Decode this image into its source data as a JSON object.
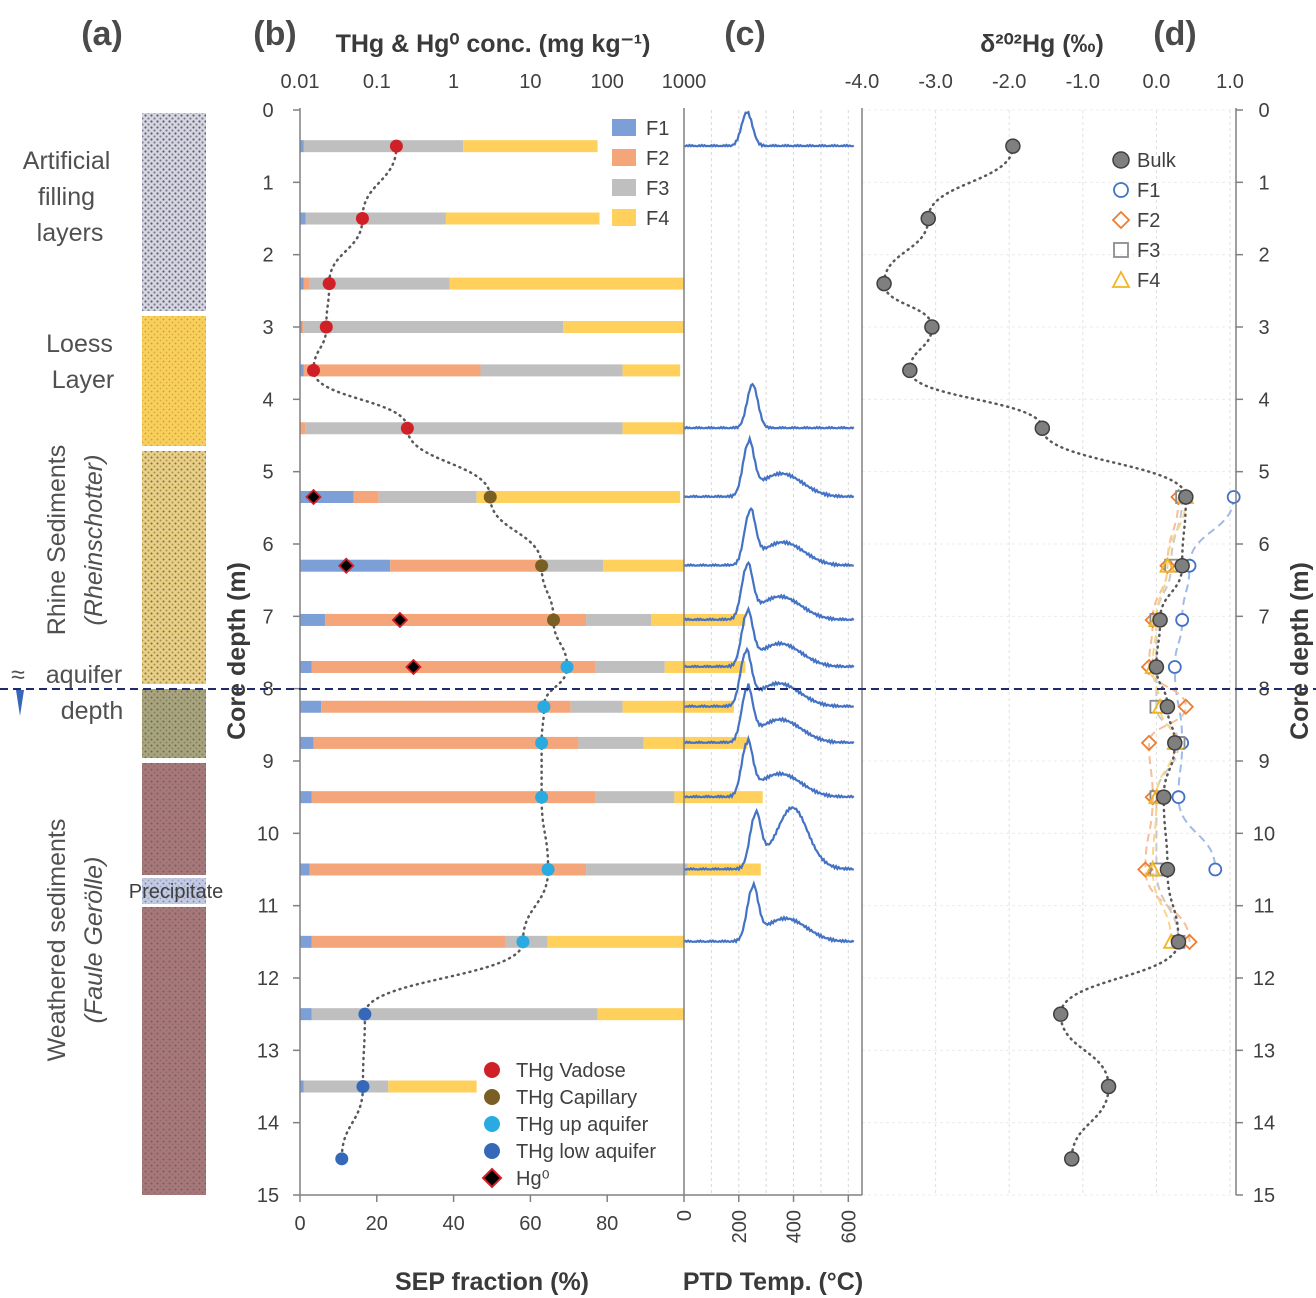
{
  "panel_labels": [
    "(a)",
    "(b)",
    "(c)",
    "(d)"
  ],
  "stratigraphy": {
    "artificial": "Artificial filling layers",
    "loess": "Loess Layer",
    "rhine": "Rhine Sediments",
    "rhine_italic": "(Rheinschotter)",
    "aquifer_approx": "≈",
    "aquifer": "aquifer",
    "aquifer_depth": "depth",
    "weathered": "Weathered sediments",
    "weathered_italic": "(Faule Gerölle)",
    "precipitate": "Precipitate"
  },
  "colors": {
    "F1": "#7b9fd6",
    "F2": "#f4a57a",
    "F3": "#bfbfbf",
    "F4": "#ffd15c",
    "vadose": "#d02027",
    "capillary": "#7a5f24",
    "up_aquifer": "#29abe2",
    "low_aquifer": "#3568b8",
    "hg0": "#000000",
    "hg0_edge": "#d02027",
    "ptd_line": "#4472c4",
    "bulk": "#7f7f7f",
    "aquifer_line": "#1f2a6e",
    "dotted": "#595959"
  },
  "chart_data": [
    {
      "type": "bar",
      "panel": "(b)",
      "orientation": "horizontal-stacked",
      "title_top": "THg & Hg⁰ conc. (mg kg⁻¹)",
      "xlabel": "SEP fraction (%)",
      "ylabel": "Core depth (m)",
      "xlim": [
        0,
        100
      ],
      "ylim": [
        0,
        15
      ],
      "x_ticks": [
        "0",
        "20",
        "40",
        "60",
        "80"
      ],
      "top_log_ticks": [
        "0.01",
        "0.1",
        "1",
        "10",
        "100",
        "1000"
      ],
      "top_log_range": [
        0.01,
        1000
      ],
      "y_ticks": [
        "0",
        "1",
        "2",
        "3",
        "4",
        "5",
        "6",
        "7",
        "8",
        "9",
        "10",
        "11",
        "12",
        "13",
        "14",
        "15"
      ],
      "series_names": [
        "F1",
        "F2",
        "F3",
        "F4"
      ],
      "depths": [
        0.5,
        1.5,
        2.4,
        3.0,
        3.6,
        4.4,
        5.35,
        6.3,
        7.05,
        7.7,
        8.25,
        8.75,
        9.5,
        10.5,
        11.5,
        12.5,
        13.5
      ],
      "F1_values": [
        1.0,
        1.5,
        1.0,
        0.5,
        1.0,
        0.0,
        14.0,
        23.5,
        6.5,
        3.0,
        5.5,
        3.5,
        3.0,
        2.5,
        3.0,
        3.0,
        1.0
      ],
      "F2_values": [
        0.0,
        0.0,
        1.5,
        0.5,
        47.0,
        1.5,
        6.5,
        0.0,
        0.0,
        0.0,
        0.0,
        0.0,
        0.0,
        0.0,
        0.0,
        0.0,
        0.0
      ],
      "F2_fill": [
        0,
        0,
        1.5,
        0.5,
        46,
        1.5,
        6.5,
        40.0,
        68.0,
        74.0,
        65.0,
        69.0,
        74.0,
        72.0,
        50.5,
        0,
        0
      ],
      "F3_values": [
        41.5,
        36.5,
        36.5,
        67.5,
        37.0,
        82.5,
        25.5,
        15.5,
        17.0,
        18.0,
        13.5,
        17.0,
        20.5,
        26.5,
        11.0,
        74.5,
        22.0
      ],
      "F4_values": [
        35.0,
        40.0,
        61.0,
        31.5,
        15.0,
        16.0,
        53.0,
        21.0,
        24.5,
        21.0,
        29.0,
        27.0,
        23.0,
        19.0,
        35.5,
        22.5,
        23.0
      ],
      "THg_vadose": {
        "depth": [
          0.5,
          1.5,
          2.4,
          3.0,
          3.6,
          4.4
        ],
        "value": [
          0.18,
          0.065,
          0.024,
          0.022,
          0.015,
          0.25
        ]
      },
      "THg_capillary": {
        "depth": [
          5.35,
          6.3,
          7.05
        ],
        "value": [
          3.0,
          14.0,
          20.0
        ]
      },
      "THg_up_aquifer": {
        "depth": [
          7.7,
          8.25,
          8.75,
          9.5,
          10.5,
          11.5
        ],
        "value": [
          30.0,
          15.0,
          14.0,
          14.0,
          17.0,
          8.0
        ]
      },
      "THg_low_aquifer": {
        "depth": [
          12.5,
          13.5,
          14.5
        ],
        "value": [
          0.07,
          0.066,
          0.035
        ]
      },
      "Hg0": {
        "depth": [
          5.35,
          6.3,
          7.05,
          7.7
        ],
        "value": [
          0.015,
          0.04,
          0.2,
          0.3
        ]
      },
      "legend_fractions": [
        "F1",
        "F2",
        "F3",
        "F4"
      ],
      "legend_points": [
        "THg Vadose",
        "THg Capillary",
        "THg up aquifer",
        "THg low aquifer",
        "Hg⁰"
      ]
    },
    {
      "type": "line",
      "panel": "(c)",
      "xlabel": "PTD Temp. (°C)",
      "xlim": [
        0,
        650
      ],
      "x_ticks": [
        "0",
        "200",
        "400",
        "600"
      ],
      "curve_depths": [
        0.5,
        4.4,
        5.35,
        6.3,
        7.05,
        7.7,
        8.25,
        8.75,
        9.5,
        10.5,
        11.5
      ],
      "peak_temps": [
        230,
        250,
        235,
        240,
        230,
        230,
        225,
        230,
        230,
        260,
        250
      ],
      "second_peak": [
        0,
        0,
        0,
        0,
        0,
        0,
        0,
        0,
        0,
        400,
        0
      ]
    },
    {
      "type": "scatter",
      "panel": "(d)",
      "title_top": "δ²⁰²Hg (‰)",
      "ylabel": "Core depth (m)",
      "xlim": [
        -4.0,
        1.0
      ],
      "x_ticks": [
        "-4.0",
        "-3.0",
        "-2.0",
        "-1.0",
        "0.0",
        "1.0"
      ],
      "y_ticks": [
        "0",
        "1",
        "2",
        "3",
        "4",
        "5",
        "6",
        "7",
        "8",
        "9",
        "10",
        "11",
        "12",
        "13",
        "14",
        "15"
      ],
      "legend": [
        "Bulk",
        "F1",
        "F2",
        "F3",
        "F4"
      ],
      "Bulk": {
        "depth": [
          0.5,
          1.5,
          2.4,
          3.0,
          3.6,
          4.4,
          5.35,
          6.3,
          7.05,
          7.7,
          8.25,
          8.75,
          9.5,
          10.5,
          11.5,
          12.5,
          13.5,
          14.5
        ],
        "value": [
          -1.95,
          -3.1,
          -3.7,
          -3.05,
          -3.35,
          -1.55,
          0.4,
          0.35,
          0.05,
          0.0,
          0.15,
          0.25,
          0.1,
          0.15,
          0.3,
          -1.3,
          -0.65,
          -1.15
        ]
      },
      "F1": {
        "depth": [
          5.35,
          6.3,
          7.05,
          7.7,
          8.75,
          9.5,
          10.5
        ],
        "value": [
          1.05,
          0.45,
          0.35,
          0.25,
          0.35,
          0.3,
          0.8
        ]
      },
      "F2": {
        "depth": [
          5.35,
          6.3,
          7.05,
          7.7,
          8.25,
          8.75,
          9.5,
          10.5,
          11.5
        ],
        "value": [
          0.3,
          0.15,
          -0.05,
          -0.1,
          0.4,
          -0.1,
          -0.05,
          -0.15,
          0.45
        ]
      },
      "F3": {
        "depth": [
          5.35,
          6.3,
          7.05,
          8.25,
          8.75,
          9.5,
          10.5,
          11.5
        ],
        "value": [
          0.35,
          0.2,
          0.0,
          0.0,
          0.3,
          0.0,
          0.0,
          0.3
        ]
      },
      "F4": {
        "depth": [
          5.35,
          6.3,
          7.05,
          7.7,
          8.25,
          8.75,
          9.5,
          10.5,
          11.5
        ],
        "value": [
          0.4,
          0.15,
          0.0,
          -0.05,
          0.05,
          0.25,
          0.0,
          -0.05,
          0.2
        ]
      },
      "aquifer_depth": 8.0
    }
  ]
}
